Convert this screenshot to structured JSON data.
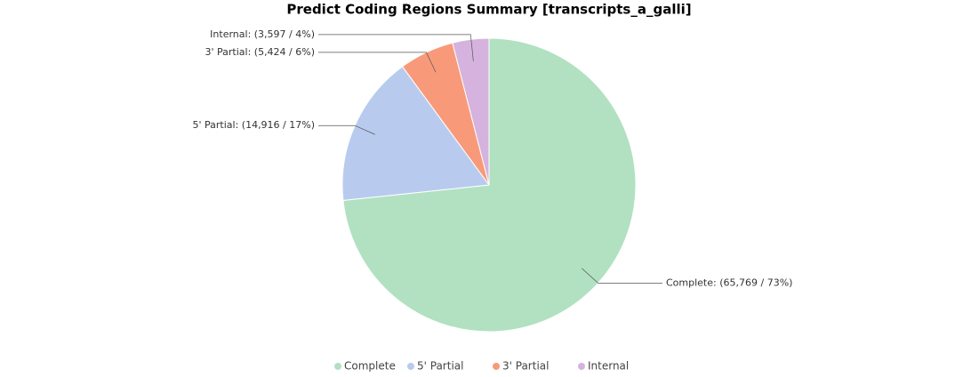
{
  "chart_data": {
    "type": "pie",
    "title": "Predict Coding Regions Summary [transcripts_a_galli]",
    "categories": [
      "Complete",
      "5' Partial",
      "3' Partial",
      "Internal"
    ],
    "values": [
      65769,
      14916,
      5424,
      3597
    ],
    "value_labels": [
      "Complete: (65,769 / 73%)",
      "5' Partial: (14,916 / 17%)",
      "3' Partial: (5,424 / 6%)",
      "Internal: (3,597 / 4%)"
    ],
    "colors": [
      "#b1e1c1",
      "#b8cbef",
      "#f89a7a",
      "#d6b2de"
    ]
  }
}
